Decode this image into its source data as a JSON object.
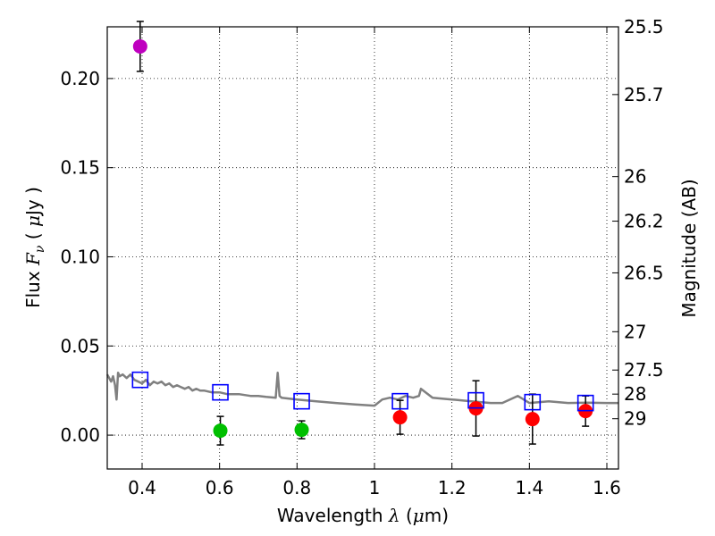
{
  "chart_data": {
    "type": "scatter",
    "xlabel": "Wavelength  λ (μm)",
    "ylabel": "Flux  F_ν  ( μJy )",
    "ylabel_parts": {
      "prefix": "Flux  ",
      "symbol": "F",
      "subscript": "ν",
      "unit_open": "  ( ",
      "unit_mu": "μ",
      "unit_rest": "Jy )"
    },
    "xlabel_parts": {
      "prefix": "Wavelength  ",
      "symbol": "λ",
      "unit": " (",
      "unit_mu": "μ",
      "unit_rest": "m)"
    },
    "y2label": "Magnitude (AB)",
    "xlim": [
      0.31,
      1.63
    ],
    "ylim": [
      -0.019,
      0.229
    ],
    "grid": true,
    "x_ticks": [
      0.4,
      0.6,
      0.8,
      1.0,
      1.2,
      1.4,
      1.6
    ],
    "x_tick_labels": [
      "0.4",
      "0.6",
      "0.8",
      "1",
      "1.2",
      "1.4",
      "1.6"
    ],
    "y_ticks": [
      0.0,
      0.05,
      0.1,
      0.15,
      0.2
    ],
    "y_tick_labels": [
      "0.00",
      "0.05",
      "0.10",
      "0.15",
      "0.20"
    ],
    "mag_ticks": [
      {
        "label": "25.5",
        "flux": 0.229
      },
      {
        "label": "25.7",
        "flux": 0.191
      },
      {
        "label": "26",
        "flux": 0.145
      },
      {
        "label": "26.2",
        "flux": 0.12
      },
      {
        "label": "26.5",
        "flux": 0.091
      },
      {
        "label": "27",
        "flux": 0.058
      },
      {
        "label": "27.5",
        "flux": 0.0365
      },
      {
        "label": "28",
        "flux": 0.023
      },
      {
        "label": "29",
        "flux": 0.0092
      }
    ],
    "points": [
      {
        "x": 0.395,
        "y": 0.218,
        "err": 0.014,
        "color": "#bf00bf"
      },
      {
        "x": 0.602,
        "y": 0.0025,
        "err": 0.008,
        "color": "#00bf00"
      },
      {
        "x": 0.812,
        "y": 0.003,
        "err": 0.005,
        "color": "#00bf00"
      },
      {
        "x": 1.066,
        "y": 0.01,
        "err": 0.0095,
        "color": "#ff0000"
      },
      {
        "x": 1.262,
        "y": 0.015,
        "err": 0.0155,
        "color": "#ff0000"
      },
      {
        "x": 1.408,
        "y": 0.009,
        "err": 0.014,
        "color": "#ff0000"
      },
      {
        "x": 1.545,
        "y": 0.0135,
        "err": 0.0085,
        "color": "#ff0000"
      }
    ],
    "model_points": {
      "color": "#0000ff",
      "x": [
        0.395,
        0.602,
        0.812,
        1.066,
        1.262,
        1.408,
        1.545
      ],
      "y": [
        0.031,
        0.024,
        0.019,
        0.019,
        0.0195,
        0.0185,
        0.018
      ]
    },
    "sed": {
      "color": "#808080",
      "x": [
        0.31,
        0.315,
        0.32,
        0.325,
        0.33,
        0.334,
        0.338,
        0.342,
        0.35,
        0.36,
        0.37,
        0.38,
        0.39,
        0.4,
        0.41,
        0.42,
        0.43,
        0.44,
        0.45,
        0.46,
        0.47,
        0.48,
        0.49,
        0.5,
        0.51,
        0.52,
        0.53,
        0.54,
        0.55,
        0.56,
        0.58,
        0.6,
        0.62,
        0.65,
        0.68,
        0.7,
        0.72,
        0.745,
        0.75,
        0.755,
        0.76,
        0.8,
        0.85,
        0.9,
        0.95,
        1.0,
        1.02,
        1.04,
        1.06,
        1.08,
        1.1,
        1.115,
        1.12,
        1.15,
        1.2,
        1.25,
        1.3,
        1.33,
        1.37,
        1.4,
        1.45,
        1.5,
        1.55,
        1.6,
        1.63
      ],
      "y": [
        0.034,
        0.032,
        0.03,
        0.033,
        0.028,
        0.02,
        0.035,
        0.033,
        0.034,
        0.032,
        0.034,
        0.031,
        0.03,
        0.029,
        0.031,
        0.028,
        0.03,
        0.029,
        0.03,
        0.028,
        0.029,
        0.027,
        0.028,
        0.027,
        0.026,
        0.027,
        0.025,
        0.026,
        0.025,
        0.025,
        0.024,
        0.024,
        0.023,
        0.023,
        0.022,
        0.022,
        0.0215,
        0.021,
        0.035,
        0.022,
        0.021,
        0.02,
        0.019,
        0.018,
        0.0172,
        0.0165,
        0.02,
        0.021,
        0.02,
        0.022,
        0.021,
        0.022,
        0.026,
        0.021,
        0.02,
        0.019,
        0.018,
        0.018,
        0.022,
        0.018,
        0.019,
        0.018,
        0.0182,
        0.018,
        0.018
      ]
    }
  }
}
